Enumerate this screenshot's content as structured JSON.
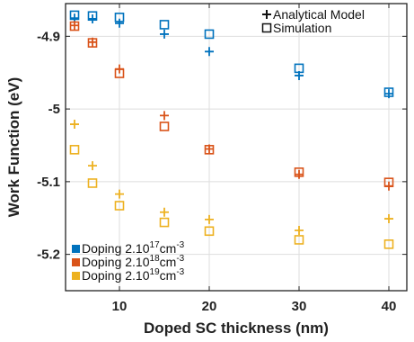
{
  "chart_data": {
    "type": "scatter",
    "xlabel": "Doped SC thickness (nm)",
    "ylabel": "Work Function (eV)",
    "xlim": [
      4,
      42
    ],
    "ylim": [
      -5.25,
      -4.855
    ],
    "xticks": [
      10,
      20,
      30,
      40
    ],
    "yticks": [
      -4.9,
      -5.0,
      -5.1,
      -5.2
    ],
    "ytick_labels": [
      "-4.9",
      "-5",
      "-5.1",
      "-5.2"
    ],
    "grid": true,
    "x": [
      5,
      7,
      10,
      15,
      20,
      30,
      40
    ],
    "marker_legend": {
      "position": "top-right",
      "entries": [
        {
          "marker": "plus",
          "label": "Analytical Model"
        },
        {
          "marker": "square",
          "label": "Simulation"
        }
      ]
    },
    "doping_legend": {
      "position": "bottom-left",
      "entries": [
        {
          "color": "#0072BD",
          "text": "Doping 2.10",
          "sup": "17",
          "unit": "cm",
          "unit_sup": "-3"
        },
        {
          "color": "#D95319",
          "text": "Doping 2.10",
          "sup": "18",
          "unit": "cm",
          "unit_sup": "-3"
        },
        {
          "color": "#EDB120",
          "text": "Doping 2.10",
          "sup": "19",
          "unit": "cm",
          "unit_sup": "-3"
        }
      ]
    },
    "series": [
      {
        "color": "#0072BD",
        "analytical": [
          -4.875,
          -4.876,
          -4.882,
          -4.897,
          -4.921,
          -4.954,
          -4.979
        ],
        "simulation": [
          -4.871,
          -4.872,
          -4.874,
          -4.884,
          -4.897,
          -4.944,
          -4.977
        ]
      },
      {
        "color": "#D95319",
        "analytical": [
          -4.885,
          -4.908,
          -4.945,
          -5.009,
          -5.055,
          -5.09,
          -5.106
        ],
        "simulation": [
          -4.886,
          -4.909,
          -4.951,
          -5.024,
          -5.056,
          -5.087,
          -5.101
        ]
      },
      {
        "color": "#EDB120",
        "analytical": [
          -5.021,
          -5.078,
          -5.117,
          -5.142,
          -5.152,
          -5.167,
          -5.151
        ],
        "simulation": [
          -5.056,
          -5.102,
          -5.133,
          -5.156,
          -5.168,
          -5.18,
          -5.186
        ]
      }
    ]
  }
}
